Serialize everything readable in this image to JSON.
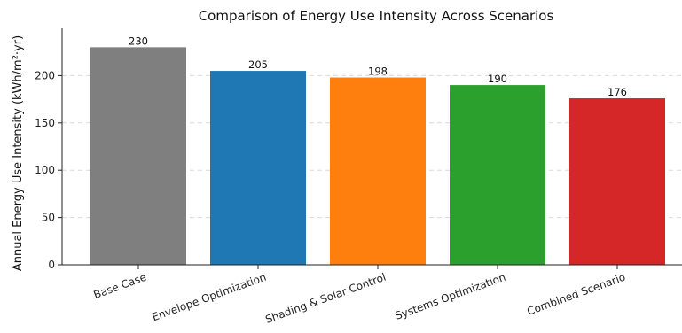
{
  "chart_data": {
    "type": "bar",
    "title": "Comparison of Energy Use Intensity Across Scenarios",
    "xlabel": "",
    "ylabel": "Annual Energy Use Intensity (kWh/m²·yr)",
    "categories": [
      "Base Case",
      "Envelope Optimization",
      "Shading & Solar Control",
      "Systems Optimization",
      "Combined Scenario"
    ],
    "values": [
      230,
      205,
      198,
      190,
      176
    ],
    "value_labels": [
      "230",
      "205",
      "198",
      "190",
      "176"
    ],
    "colors": [
      "#7f7f7f",
      "#1f77b4",
      "#ff7f0e",
      "#2ca02c",
      "#d62728"
    ],
    "ylim": [
      0,
      250
    ],
    "yticks": [
      0,
      50,
      100,
      150,
      200
    ],
    "ytick_labels": [
      "0",
      "50",
      "100",
      "150",
      "200"
    ],
    "grid": true
  }
}
